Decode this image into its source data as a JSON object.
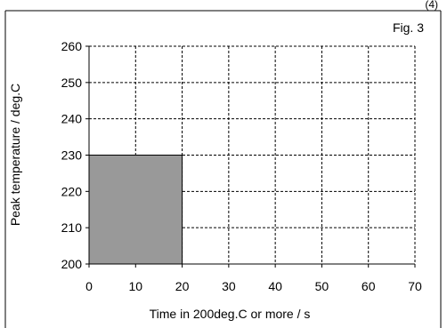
{
  "corner_label": "(4)",
  "chart_data": {
    "type": "bar",
    "title": "",
    "annotation": "Fig. 3",
    "xlabel": "Time in 200deg.C or more / s",
    "ylabel": "Peak temperature / deg.C",
    "xlim": [
      0,
      70
    ],
    "ylim": [
      200,
      260
    ],
    "x_ticks": [
      "0",
      "10",
      "20",
      "30",
      "40",
      "50",
      "60",
      "70"
    ],
    "y_ticks": [
      "200",
      "210",
      "220",
      "230",
      "240",
      "250",
      "260"
    ],
    "grid": true,
    "grid_style": "dashed",
    "legend": "none",
    "region": {
      "x_min": 0,
      "x_max": 20,
      "y_min": 200,
      "y_max": 230,
      "fill": "#999999",
      "stroke": "#000000"
    }
  }
}
